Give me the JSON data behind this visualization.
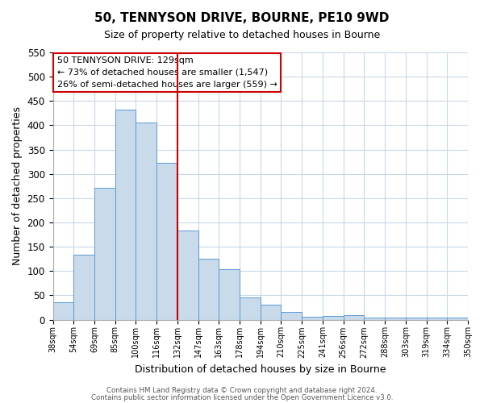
{
  "title": "50, TENNYSON DRIVE, BOURNE, PE10 9WD",
  "subtitle": "Size of property relative to detached houses in Bourne",
  "xlabel": "Distribution of detached houses by size in Bourne",
  "ylabel": "Number of detached properties",
  "bin_edges": [
    "38sqm",
    "54sqm",
    "69sqm",
    "85sqm",
    "100sqm",
    "116sqm",
    "132sqm",
    "147sqm",
    "163sqm",
    "178sqm",
    "194sqm",
    "210sqm",
    "225sqm",
    "241sqm",
    "256sqm",
    "272sqm",
    "288sqm",
    "303sqm",
    "319sqm",
    "334sqm",
    "350sqm"
  ],
  "bar_heights": [
    35,
    133,
    272,
    433,
    405,
    322,
    183,
    126,
    103,
    46,
    30,
    15,
    6,
    8,
    10,
    4,
    4,
    5,
    4,
    5
  ],
  "bar_color": "#c9daea",
  "bar_edge_color": "#5b9bd5",
  "grid_color": "#c8d8e8",
  "vline_index": 6,
  "vline_color": "#cc0000",
  "annotation_title": "50 TENNYSON DRIVE: 129sqm",
  "annotation_line1": "← 73% of detached houses are smaller (1,547)",
  "annotation_line2": "26% of semi-detached houses are larger (559) →",
  "annotation_box_color": "#ffffff",
  "annotation_box_edge": "#cc0000",
  "ylim": [
    0,
    550
  ],
  "yticks": [
    0,
    50,
    100,
    150,
    200,
    250,
    300,
    350,
    400,
    450,
    500,
    550
  ],
  "footer1": "Contains HM Land Registry data © Crown copyright and database right 2024.",
  "footer2": "Contains public sector information licensed under the Open Government Licence v3.0.",
  "bg_color": "#ffffff",
  "plot_bg_color": "#ffffff"
}
